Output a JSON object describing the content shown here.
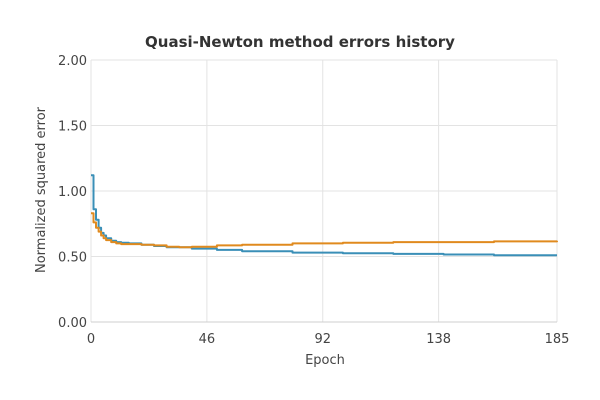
{
  "chart_data": {
    "type": "line",
    "title": "Quasi-Newton method errors history",
    "xlabel": "Epoch",
    "ylabel": "Normalized squared error",
    "xlim": [
      0,
      185
    ],
    "ylim": [
      0,
      2
    ],
    "xticks": [
      0,
      46,
      92,
      138,
      185
    ],
    "xtick_labels": [
      "0",
      "46",
      "92",
      "138",
      "185"
    ],
    "yticks": [
      0,
      0.5,
      1,
      1.5,
      2
    ],
    "ytick_labels": [
      "0.00",
      "0.50",
      "1.00",
      "1.50",
      "2.00"
    ],
    "grid": true,
    "legend": "none",
    "series": [
      {
        "color": "#3a8fb7",
        "x": [
          0,
          1,
          2,
          3,
          4,
          5,
          6,
          8,
          10,
          12,
          15,
          20,
          25,
          30,
          40,
          50,
          60,
          80,
          100,
          120,
          140,
          160,
          185
        ],
        "y": [
          1.12,
          0.86,
          0.78,
          0.72,
          0.68,
          0.66,
          0.64,
          0.62,
          0.61,
          0.605,
          0.6,
          0.59,
          0.58,
          0.57,
          0.56,
          0.55,
          0.54,
          0.53,
          0.525,
          0.52,
          0.515,
          0.51,
          0.51
        ]
      },
      {
        "color": "#e08a1e",
        "x": [
          0,
          1,
          2,
          3,
          4,
          5,
          6,
          8,
          10,
          12,
          15,
          20,
          25,
          30,
          35,
          40,
          50,
          60,
          80,
          100,
          120,
          140,
          160,
          180,
          185
        ],
        "y": [
          0.83,
          0.76,
          0.72,
          0.69,
          0.66,
          0.64,
          0.625,
          0.61,
          0.6,
          0.595,
          0.595,
          0.59,
          0.585,
          0.575,
          0.57,
          0.575,
          0.585,
          0.59,
          0.6,
          0.605,
          0.61,
          0.61,
          0.615,
          0.615,
          0.62
        ]
      }
    ]
  }
}
